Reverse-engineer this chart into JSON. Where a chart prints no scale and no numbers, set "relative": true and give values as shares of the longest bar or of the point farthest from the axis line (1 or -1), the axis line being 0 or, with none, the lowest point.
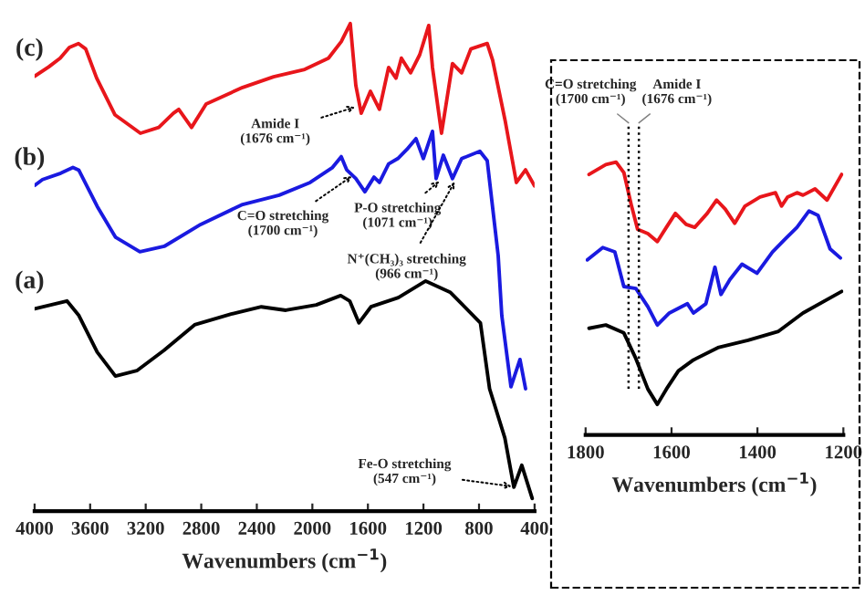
{
  "chart_data": [
    {
      "type": "line",
      "relative": true,
      "xlabel": "Wavenumbers (cm$^{−1}$)",
      "xlim": [
        4000,
        400
      ],
      "xticks": [
        4000,
        3600,
        3200,
        2800,
        2400,
        2000,
        1600,
        1200,
        800,
        400
      ],
      "tick_labels": "x",
      "legend": false,
      "series": [
        {
          "name": "(c)",
          "color": "#e8161b",
          "x": [
            4000,
            3899,
            3816,
            3750,
            3684,
            3632,
            3553,
            3422,
            3238,
            3106,
            3001,
            2962,
            2870,
            2765,
            2502,
            2279,
            2055,
            1884,
            1792,
            1727,
            1687,
            1648,
            1582,
            1517,
            1451,
            1398,
            1359,
            1293,
            1227,
            1162,
            1135,
            1070,
            991,
            925,
            859,
            741,
            702,
            610,
            531,
            465,
            400
          ],
          "values": [
            0.892,
            0.911,
            0.929,
            0.951,
            0.959,
            0.948,
            0.888,
            0.813,
            0.775,
            0.787,
            0.816,
            0.824,
            0.787,
            0.835,
            0.869,
            0.891,
            0.906,
            0.929,
            0.963,
            1.0,
            0.873,
            0.816,
            0.861,
            0.824,
            0.91,
            0.888,
            0.929,
            0.899,
            0.936,
            0.996,
            0.91,
            0.775,
            0.918,
            0.899,
            0.948,
            0.959,
            0.925,
            0.798,
            0.674,
            0.7,
            0.667
          ]
        },
        {
          "name": "(b)",
          "color": "#1a1ae0",
          "x": [
            4000,
            3943,
            3812,
            3724,
            3681,
            3549,
            3418,
            3242,
            3067,
            2804,
            2502,
            2239,
            2016,
            1858,
            1792,
            1753,
            1687,
            1622,
            1556,
            1517,
            1451,
            1385,
            1319,
            1254,
            1201,
            1135,
            1109,
            1057,
            991,
            925,
            794,
            741,
            662,
            636,
            570,
            505,
            465
          ],
          "values": [
            0.668,
            0.68,
            0.693,
            0.705,
            0.699,
            0.625,
            0.562,
            0.532,
            0.543,
            0.588,
            0.629,
            0.648,
            0.674,
            0.704,
            0.727,
            0.7,
            0.682,
            0.655,
            0.685,
            0.674,
            0.712,
            0.723,
            0.742,
            0.764,
            0.723,
            0.779,
            0.682,
            0.73,
            0.682,
            0.723,
            0.738,
            0.719,
            0.524,
            0.401,
            0.255,
            0.311,
            0.251
          ]
        },
        {
          "name": "(a)",
          "color": "#000000",
          "x": [
            4000,
            3767,
            3681,
            3549,
            3418,
            3264,
            3067,
            2848,
            2585,
            2367,
            2191,
            1972,
            1796,
            1731,
            1665,
            1578,
            1381,
            1184,
            1008,
            790,
            724,
            614,
            549,
            492,
            417
          ],
          "values": [
            0.415,
            0.431,
            0.401,
            0.326,
            0.277,
            0.288,
            0.33,
            0.382,
            0.404,
            0.419,
            0.412,
            0.423,
            0.442,
            0.431,
            0.386,
            0.419,
            0.438,
            0.472,
            0.449,
            0.386,
            0.251,
            0.15,
            0.049,
            0.094,
            0.026
          ]
        }
      ],
      "annotations": [
        {
          "text": "Amide I\n(1676 cm⁻¹)",
          "x": 1676,
          "y": 0.83
        },
        {
          "text": "C=O stretching\n(1700 cm⁻¹)",
          "x": 1700,
          "y": 0.69
        },
        {
          "text": "P-O stretching\n(1071 cm⁻¹)",
          "x": 1071,
          "y": 0.68
        },
        {
          "text": "N⁺(CH₃)₃ stretching\n(966 cm⁻¹)",
          "x": 966,
          "y": 0.68
        },
        {
          "text": "Fe-O stretching\n(547 cm⁻¹)",
          "x": 547,
          "y": 0.05
        }
      ]
    },
    {
      "type": "line",
      "relative": true,
      "xlabel": "Wavenumbers (cm$^{−1}$)",
      "xlim": [
        1800,
        1200
      ],
      "xticks": [
        1800,
        1600,
        1400,
        1200
      ],
      "tick_labels": "x",
      "legend": false,
      "series": [
        {
          "color": "#e8161b",
          "x": [
            1792,
            1753,
            1729,
            1711,
            1693,
            1679,
            1655,
            1633,
            1612,
            1591,
            1566,
            1546,
            1517,
            1495,
            1475,
            1453,
            1429,
            1394,
            1358,
            1344,
            1330,
            1308,
            1294,
            1266,
            1238,
            1204
          ],
          "values": [
            0.955,
            0.991,
            1.0,
            0.962,
            0.839,
            0.754,
            0.738,
            0.709,
            0.761,
            0.812,
            0.772,
            0.761,
            0.812,
            0.861,
            0.828,
            0.776,
            0.839,
            0.872,
            0.888,
            0.839,
            0.872,
            0.888,
            0.879,
            0.902,
            0.861,
            0.955
          ]
        },
        {
          "color": "#1a1ae0",
          "x": [
            1796,
            1760,
            1732,
            1711,
            1683,
            1655,
            1633,
            1605,
            1563,
            1549,
            1520,
            1499,
            1485,
            1464,
            1436,
            1401,
            1365,
            1337,
            1308,
            1280,
            1259,
            1231,
            1207
          ],
          "values": [
            0.642,
            0.687,
            0.671,
            0.544,
            0.537,
            0.47,
            0.403,
            0.447,
            0.481,
            0.447,
            0.481,
            0.615,
            0.515,
            0.57,
            0.626,
            0.593,
            0.671,
            0.716,
            0.761,
            0.821,
            0.805,
            0.682,
            0.649
          ]
        },
        {
          "color": "#000000",
          "x": [
            1792,
            1753,
            1711,
            1683,
            1655,
            1633,
            1612,
            1584,
            1549,
            1492,
            1422,
            1351,
            1294,
            1204
          ],
          "values": [
            0.391,
            0.403,
            0.374,
            0.28,
            0.168,
            0.112,
            0.168,
            0.235,
            0.275,
            0.32,
            0.347,
            0.38,
            0.447,
            0.526
          ]
        }
      ],
      "ref_lines": [
        {
          "axis": "x",
          "value": 1700,
          "label": "C=O stretching\n(1700 cm⁻¹)",
          "color": "#000000",
          "line_style": "dotted"
        },
        {
          "axis": "x",
          "value": 1676,
          "label": "Amide I\n(1676 cm⁻¹)",
          "color": "#000000",
          "line_style": "dotted"
        }
      ]
    }
  ]
}
